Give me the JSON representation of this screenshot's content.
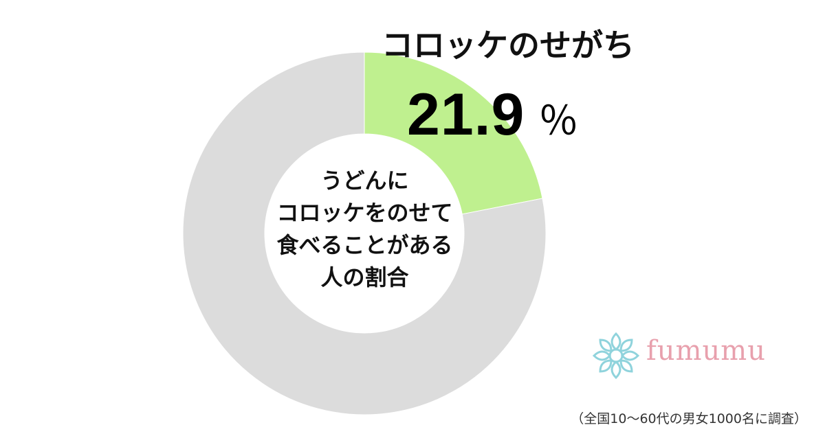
{
  "chart_data": {
    "type": "pie",
    "categories": [
      "コロッケのせがち",
      ""
    ],
    "values": [
      21.9,
      78.1
    ],
    "colors": [
      "#bff08f",
      "#dcdcdc"
    ],
    "center_label": [
      "うどんに",
      "コロッケをのせて",
      "食べることがある",
      "人の割合"
    ],
    "highlight": {
      "category": "コロッケのせがち",
      "value": "21.9",
      "unit": "％"
    }
  },
  "brand": {
    "name": "fumumu",
    "text_color": "#e8a0ad",
    "icon_color": "#8fd3dc"
  },
  "footnote": "（全国10～60代の男女1000名に調査）"
}
